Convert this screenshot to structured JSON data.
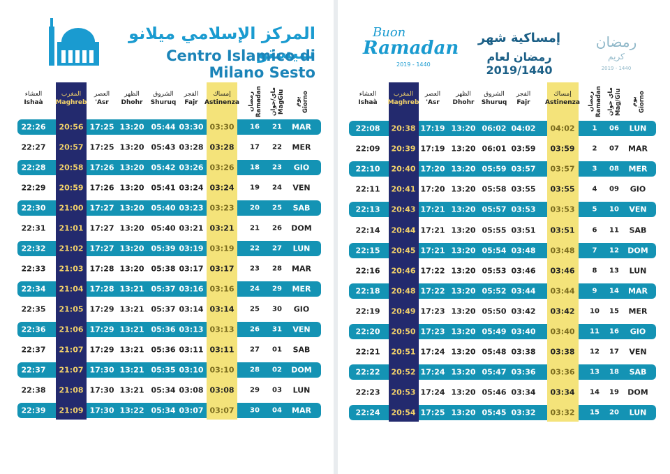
{
  "left": {
    "header": {
      "title_ar": "المركز الإسلامي ميلانو سيستو",
      "title": "Centro Islamico di Milano Sesto"
    },
    "table": {
      "columns": [
        {
          "ar": "العشاء",
          "it": "Ishaà"
        },
        {
          "ar": "المغرب",
          "it": "Maghreb"
        },
        {
          "ar": "العصر",
          "it": "'Asr"
        },
        {
          "ar": "الظهر",
          "it": "Dhohr"
        },
        {
          "ar": "الشروق",
          "it": "Shuruq"
        },
        {
          "ar": "الفجر",
          "it": "Fajr"
        },
        {
          "ar": "إمساك",
          "it": "Astinenza"
        },
        {
          "ar": "رمضان",
          "it": "Ramadan"
        },
        {
          "ar": "ماي/جوان",
          "it": "MagGiu"
        },
        {
          "ar": "يوم",
          "it": "Giorno"
        }
      ],
      "rows": [
        [
          "22:26",
          "20:56",
          "17:25",
          "13:20",
          "05:44",
          "03:30",
          "03:30",
          "16",
          "21",
          "MAR"
        ],
        [
          "22:27",
          "20:57",
          "17:25",
          "13:20",
          "05:43",
          "03:28",
          "03:28",
          "17",
          "22",
          "MER"
        ],
        [
          "22:28",
          "20:58",
          "17:26",
          "13:20",
          "05:42",
          "03:26",
          "03:26",
          "18",
          "23",
          "GIO"
        ],
        [
          "22:29",
          "20:59",
          "17:26",
          "13:20",
          "05:41",
          "03:24",
          "03:24",
          "19",
          "24",
          "VEN"
        ],
        [
          "22:30",
          "21:00",
          "17:27",
          "13:20",
          "05:40",
          "03:23",
          "03:23",
          "20",
          "25",
          "SAB"
        ],
        [
          "22:31",
          "21:01",
          "17:27",
          "13:20",
          "05:40",
          "03:21",
          "03:21",
          "21",
          "26",
          "DOM"
        ],
        [
          "22:32",
          "21:02",
          "17:27",
          "13:20",
          "05:39",
          "03:19",
          "03:19",
          "22",
          "27",
          "LUN"
        ],
        [
          "22:33",
          "21:03",
          "17:28",
          "13:20",
          "05:38",
          "03:17",
          "03:17",
          "23",
          "28",
          "MAR"
        ],
        [
          "22:34",
          "21:04",
          "17:28",
          "13:21",
          "05:37",
          "03:16",
          "03:16",
          "24",
          "29",
          "MER"
        ],
        [
          "22:35",
          "21:05",
          "17:29",
          "13:21",
          "05:37",
          "03:14",
          "03:14",
          "25",
          "30",
          "GIO"
        ],
        [
          "22:36",
          "21:06",
          "17:29",
          "13:21",
          "05:36",
          "03:13",
          "03:13",
          "26",
          "31",
          "VEN"
        ],
        [
          "22:37",
          "21:07",
          "17:29",
          "13:21",
          "05:36",
          "03:11",
          "03:11",
          "27",
          "01",
          "SAB"
        ],
        [
          "22:37",
          "21:07",
          "17:30",
          "13:21",
          "05:35",
          "03:10",
          "03:10",
          "28",
          "02",
          "DOM"
        ],
        [
          "22:38",
          "21:08",
          "17:30",
          "13:21",
          "05:34",
          "03:08",
          "03:08",
          "29",
          "03",
          "LUN"
        ],
        [
          "22:39",
          "21:09",
          "17:30",
          "13:22",
          "05:34",
          "03:07",
          "03:07",
          "30",
          "04",
          "MAR"
        ]
      ]
    }
  },
  "right": {
    "header": {
      "buon": "Buon",
      "ramadan": "Ramadan",
      "years": "2019 - 1440",
      "title_ar_1": "إمساكية شهر",
      "title_ar_2": "رمضان لعام 2019/1440",
      "logo_ar_1": "رمضان",
      "logo_ar_2": "كريم",
      "logo_years": "2019 - 1440"
    },
    "table": {
      "columns": [
        {
          "ar": "العشاء",
          "it": "Ishaà"
        },
        {
          "ar": "المغرب",
          "it": "Maghreb"
        },
        {
          "ar": "العصر",
          "it": "'Asr"
        },
        {
          "ar": "الظهر",
          "it": "Dhohr"
        },
        {
          "ar": "الشروق",
          "it": "Shuruq"
        },
        {
          "ar": "الفجر",
          "it": "Fajr"
        },
        {
          "ar": "إمساك",
          "it": "Astinenza"
        },
        {
          "ar": "رمضان",
          "it": "Ramadan"
        },
        {
          "ar": "ماي جوان",
          "it": "Mag/Giu"
        },
        {
          "ar": "يوم",
          "it": "Giorno"
        }
      ],
      "rows": [
        [
          "22:08",
          "20:38",
          "17:19",
          "13:20",
          "06:02",
          "04:02",
          "04:02",
          "1",
          "06",
          "LUN"
        ],
        [
          "22:09",
          "20:39",
          "17:19",
          "13:20",
          "06:01",
          "03:59",
          "03:59",
          "2",
          "07",
          "MAR"
        ],
        [
          "22:10",
          "20:40",
          "17:20",
          "13:20",
          "05:59",
          "03:57",
          "03:57",
          "3",
          "08",
          "MER"
        ],
        [
          "22:11",
          "20:41",
          "17:20",
          "13:20",
          "05:58",
          "03:55",
          "03:55",
          "4",
          "09",
          "GIO"
        ],
        [
          "22:13",
          "20:43",
          "17:21",
          "13:20",
          "05:57",
          "03:53",
          "03:53",
          "5",
          "10",
          "VEN"
        ],
        [
          "22:14",
          "20:44",
          "17:21",
          "13:20",
          "05:55",
          "03:51",
          "03:51",
          "6",
          "11",
          "SAB"
        ],
        [
          "22:15",
          "20:45",
          "17:21",
          "13:20",
          "05:54",
          "03:48",
          "03:48",
          "7",
          "12",
          "DOM"
        ],
        [
          "22:16",
          "20:46",
          "17:22",
          "13:20",
          "05:53",
          "03:46",
          "03:46",
          "8",
          "13",
          "LUN"
        ],
        [
          "22:18",
          "20:48",
          "17:22",
          "13:20",
          "05:52",
          "03:44",
          "03:44",
          "9",
          "14",
          "MAR"
        ],
        [
          "22:19",
          "20:49",
          "17:23",
          "13:20",
          "05:50",
          "03:42",
          "03:42",
          "10",
          "15",
          "MER"
        ],
        [
          "22:20",
          "20:50",
          "17:23",
          "13:20",
          "05:49",
          "03:40",
          "03:40",
          "11",
          "16",
          "GIO"
        ],
        [
          "22:21",
          "20:51",
          "17:24",
          "13:20",
          "05:48",
          "03:38",
          "03:38",
          "12",
          "17",
          "VEN"
        ],
        [
          "22:22",
          "20:52",
          "17:24",
          "13:20",
          "05:47",
          "03:36",
          "03:36",
          "13",
          "18",
          "SAB"
        ],
        [
          "22:23",
          "20:53",
          "17:24",
          "13:20",
          "05:46",
          "03:34",
          "03:34",
          "14",
          "19",
          "DOM"
        ],
        [
          "22:24",
          "20:54",
          "17:25",
          "13:20",
          "05:45",
          "03:32",
          "03:32",
          "15",
          "20",
          "LUN"
        ]
      ]
    }
  }
}
